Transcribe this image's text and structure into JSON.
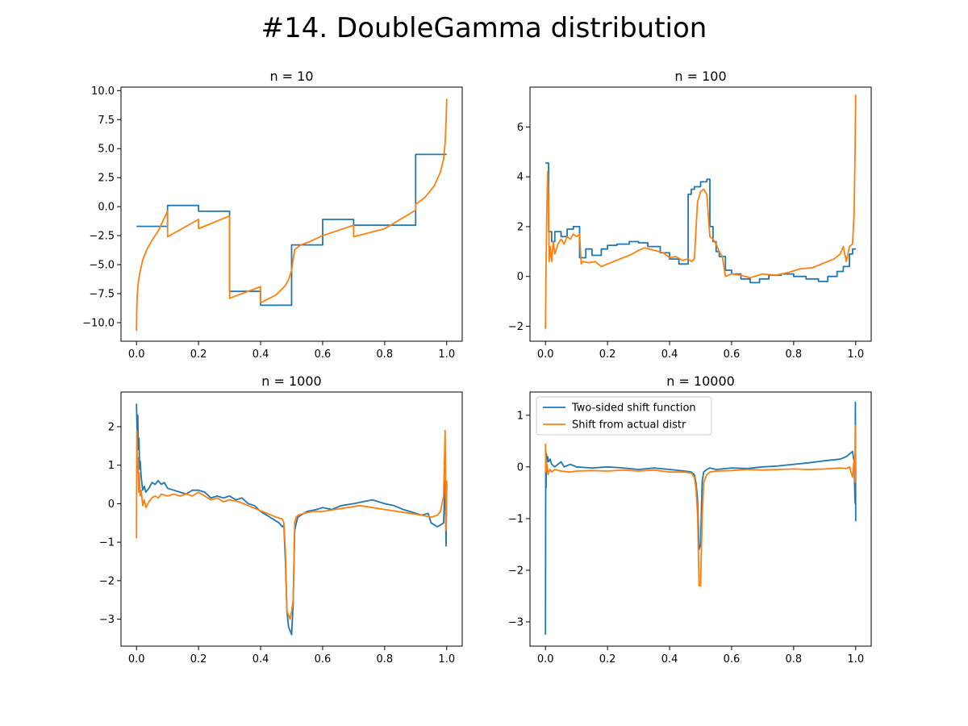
{
  "figure": {
    "title": "#14. DoubleGamma distribution"
  },
  "colors": {
    "series_0": "#1f77b4",
    "series_1": "#ff7f0e"
  },
  "legend": {
    "placement": "upper-left",
    "panel": 3,
    "entries": [
      "Two-sided shift function",
      "Shift from actual distr"
    ]
  },
  "chart_data": [
    {
      "type": "line",
      "title": "n = 10",
      "xlim": [
        -0.05,
        1.05
      ],
      "ylim": [
        -11.6,
        10.3
      ],
      "xticks": [
        0.0,
        0.2,
        0.4,
        0.6,
        0.8,
        1.0
      ],
      "xtick_labels": [
        "0.0",
        "0.2",
        "0.4",
        "0.6",
        "0.8",
        "1.0"
      ],
      "yticks": [
        -10.0,
        -7.5,
        -5.0,
        -2.5,
        0.0,
        2.5,
        5.0,
        7.5,
        10.0
      ],
      "ytick_labels": [
        "−10.0",
        "−7.5",
        "−5.0",
        "−2.5",
        "0.0",
        "2.5",
        "5.0",
        "7.5",
        "10.0"
      ],
      "series": [
        {
          "name": "Two-sided shift function",
          "x": [
            0.0,
            0.1,
            0.1,
            0.2,
            0.2,
            0.3,
            0.3,
            0.4,
            0.4,
            0.5,
            0.5,
            0.6,
            0.6,
            0.7,
            0.7,
            0.9,
            0.9,
            1.0
          ],
          "y": [
            -1.7,
            -1.7,
            0.1,
            0.1,
            -0.4,
            -0.4,
            -7.3,
            -7.3,
            -8.5,
            -8.5,
            -3.3,
            -3.3,
            -1.1,
            -1.1,
            -1.6,
            -1.6,
            4.5,
            4.5
          ]
        },
        {
          "name": "Shift from actual distr",
          "x": [
            0.0,
            0.001,
            0.003,
            0.006,
            0.01,
            0.02,
            0.035,
            0.05,
            0.07,
            0.1,
            0.1,
            0.2,
            0.2,
            0.3,
            0.3,
            0.4,
            0.4,
            0.45,
            0.48,
            0.49,
            0.5,
            0.51,
            0.53,
            0.56,
            0.6,
            0.7,
            0.7,
            0.8,
            0.9,
            0.9,
            0.93,
            0.96,
            0.98,
            0.99,
            0.995,
            0.998,
            1.0
          ],
          "y": [
            -10.7,
            -8.5,
            -7.4,
            -6.5,
            -5.8,
            -4.6,
            -3.6,
            -2.9,
            -2.1,
            -0.4,
            -2.6,
            -1.1,
            -1.9,
            -0.8,
            -7.9,
            -6.9,
            -8.3,
            -7.6,
            -6.8,
            -6.3,
            -5.5,
            -3.7,
            -3.3,
            -3.0,
            -2.5,
            -1.6,
            -2.6,
            -1.9,
            -0.3,
            0.2,
            0.8,
            1.8,
            3.0,
            4.1,
            5.5,
            7.3,
            9.3
          ]
        }
      ]
    },
    {
      "type": "line",
      "title": "n = 100",
      "xlim": [
        -0.05,
        1.05
      ],
      "ylim": [
        -2.6,
        7.6
      ],
      "xticks": [
        0.0,
        0.2,
        0.4,
        0.6,
        0.8,
        1.0
      ],
      "xtick_labels": [
        "0.0",
        "0.2",
        "0.4",
        "0.6",
        "0.8",
        "1.0"
      ],
      "yticks": [
        -2,
        0,
        2,
        4,
        6
      ],
      "ytick_labels": [
        "−2",
        "0",
        "2",
        "4",
        "6"
      ],
      "series": [
        {
          "name": "Two-sided shift function",
          "x": [
            0.0,
            0.01,
            0.01,
            0.02,
            0.02,
            0.03,
            0.03,
            0.05,
            0.05,
            0.07,
            0.07,
            0.09,
            0.09,
            0.11,
            0.11,
            0.13,
            0.13,
            0.15,
            0.15,
            0.18,
            0.18,
            0.2,
            0.2,
            0.23,
            0.23,
            0.27,
            0.27,
            0.3,
            0.3,
            0.33,
            0.33,
            0.37,
            0.37,
            0.4,
            0.4,
            0.43,
            0.43,
            0.46,
            0.46,
            0.47,
            0.47,
            0.48,
            0.48,
            0.5,
            0.5,
            0.52,
            0.52,
            0.53,
            0.53,
            0.54,
            0.54,
            0.55,
            0.55,
            0.56,
            0.56,
            0.58,
            0.58,
            0.6,
            0.6,
            0.63,
            0.63,
            0.66,
            0.66,
            0.69,
            0.69,
            0.72,
            0.72,
            0.76,
            0.76,
            0.8,
            0.8,
            0.84,
            0.84,
            0.88,
            0.88,
            0.91,
            0.91,
            0.94,
            0.94,
            0.96,
            0.96,
            0.98,
            0.98,
            0.99,
            0.99,
            1.0
          ],
          "y": [
            4.55,
            4.55,
            1.8,
            1.8,
            1.4,
            1.4,
            1.8,
            1.8,
            1.6,
            1.6,
            1.9,
            1.9,
            2.0,
            2.0,
            0.75,
            0.75,
            1.1,
            1.1,
            0.85,
            0.85,
            1.1,
            1.1,
            1.25,
            1.25,
            1.3,
            1.3,
            1.4,
            1.4,
            1.35,
            1.35,
            1.2,
            1.2,
            0.95,
            0.95,
            0.7,
            0.7,
            0.5,
            0.5,
            3.3,
            3.3,
            3.5,
            3.5,
            3.6,
            3.6,
            3.8,
            3.8,
            3.9,
            3.9,
            2.0,
            2.0,
            1.4,
            1.4,
            1.0,
            1.0,
            0.8,
            0.8,
            0.25,
            0.25,
            0.1,
            0.1,
            -0.1,
            -0.1,
            -0.25,
            -0.25,
            -0.1,
            -0.1,
            0.05,
            0.05,
            0.1,
            0.1,
            0.0,
            0.0,
            -0.1,
            -0.1,
            -0.2,
            -0.2,
            0.0,
            0.0,
            0.2,
            0.2,
            0.4,
            0.4,
            0.9,
            0.9,
            1.1,
            1.1
          ]
        },
        {
          "name": "Shift from actual distr",
          "x": [
            0.0,
            0.002,
            0.004,
            0.007,
            0.01,
            0.012,
            0.015,
            0.02,
            0.025,
            0.03,
            0.04,
            0.05,
            0.06,
            0.07,
            0.08,
            0.09,
            0.1,
            0.11,
            0.115,
            0.12,
            0.14,
            0.16,
            0.18,
            0.2,
            0.22,
            0.25,
            0.28,
            0.3,
            0.32,
            0.35,
            0.38,
            0.4,
            0.42,
            0.44,
            0.46,
            0.47,
            0.48,
            0.49,
            0.5,
            0.51,
            0.52,
            0.53,
            0.54,
            0.55,
            0.56,
            0.57,
            0.58,
            0.6,
            0.63,
            0.66,
            0.7,
            0.74,
            0.78,
            0.82,
            0.86,
            0.9,
            0.93,
            0.95,
            0.96,
            0.97,
            0.98,
            0.99,
            0.995,
            0.998,
            1.0
          ],
          "y": [
            -2.1,
            0.5,
            2.5,
            4.2,
            3.0,
            0.6,
            1.2,
            0.6,
            1.4,
            0.9,
            1.3,
            1.5,
            1.3,
            1.6,
            1.5,
            1.7,
            1.6,
            1.7,
            0.5,
            0.6,
            0.55,
            0.6,
            0.4,
            0.5,
            0.6,
            0.75,
            0.9,
            1.05,
            1.15,
            1.05,
            0.95,
            0.75,
            0.8,
            0.65,
            0.7,
            0.6,
            0.7,
            3.0,
            3.4,
            3.5,
            3.3,
            1.6,
            1.5,
            1.3,
            1.0,
            0.8,
            0.0,
            0.1,
            0.05,
            -0.05,
            0.1,
            0.05,
            0.15,
            0.3,
            0.35,
            0.55,
            0.7,
            0.9,
            1.2,
            0.6,
            1.2,
            1.3,
            2.5,
            5.0,
            7.3
          ]
        }
      ]
    },
    {
      "type": "line",
      "title": "n = 1000",
      "xlim": [
        -0.05,
        1.05
      ],
      "ylim": [
        -3.7,
        2.9
      ],
      "xticks": [
        0.0,
        0.2,
        0.4,
        0.6,
        0.8,
        1.0
      ],
      "xtick_labels": [
        "0.0",
        "0.2",
        "0.4",
        "0.6",
        "0.8",
        "1.0"
      ],
      "yticks": [
        -3,
        -2,
        -1,
        0,
        1,
        2
      ],
      "ytick_labels": [
        "−3",
        "−2",
        "−1",
        "0",
        "1",
        "2"
      ],
      "series": [
        {
          "name": "Two-sided shift function",
          "x": [
            0.0,
            0.002,
            0.004,
            0.006,
            0.008,
            0.01,
            0.012,
            0.015,
            0.02,
            0.025,
            0.03,
            0.04,
            0.05,
            0.06,
            0.07,
            0.08,
            0.09,
            0.1,
            0.12,
            0.14,
            0.16,
            0.18,
            0.2,
            0.22,
            0.24,
            0.26,
            0.28,
            0.3,
            0.32,
            0.34,
            0.36,
            0.38,
            0.4,
            0.42,
            0.44,
            0.46,
            0.47,
            0.475,
            0.48,
            0.485,
            0.49,
            0.495,
            0.5,
            0.505,
            0.51,
            0.515,
            0.52,
            0.53,
            0.55,
            0.58,
            0.6,
            0.63,
            0.66,
            0.7,
            0.73,
            0.76,
            0.8,
            0.83,
            0.86,
            0.9,
            0.92,
            0.94,
            0.95,
            0.96,
            0.97,
            0.98,
            0.99,
            0.995,
            0.998,
            1.0
          ],
          "y": [
            2.6,
            1.8,
            2.3,
            1.4,
            1.7,
            0.9,
            1.1,
            0.7,
            0.35,
            0.45,
            0.3,
            0.4,
            0.55,
            0.5,
            0.6,
            0.5,
            0.55,
            0.4,
            0.35,
            0.3,
            0.25,
            0.35,
            0.35,
            0.3,
            0.15,
            0.2,
            0.15,
            0.2,
            0.1,
            0.15,
            0.0,
            -0.05,
            -0.2,
            -0.3,
            -0.4,
            -0.5,
            -0.6,
            -0.55,
            -1.5,
            -2.8,
            -3.2,
            -3.3,
            -3.4,
            -2.6,
            -0.7,
            -0.5,
            -0.35,
            -0.3,
            -0.2,
            -0.15,
            -0.1,
            -0.15,
            -0.05,
            0.0,
            0.05,
            0.1,
            0.0,
            -0.05,
            -0.15,
            -0.25,
            -0.3,
            -0.25,
            -0.5,
            -0.55,
            -0.6,
            -0.55,
            -0.5,
            0.6,
            -1.1,
            0.5
          ]
        },
        {
          "name": "Shift from actual distr",
          "x": [
            0.0,
            0.001,
            0.003,
            0.005,
            0.007,
            0.009,
            0.012,
            0.015,
            0.02,
            0.025,
            0.03,
            0.04,
            0.05,
            0.06,
            0.07,
            0.08,
            0.1,
            0.12,
            0.14,
            0.16,
            0.18,
            0.2,
            0.22,
            0.24,
            0.26,
            0.28,
            0.3,
            0.33,
            0.36,
            0.39,
            0.42,
            0.45,
            0.47,
            0.475,
            0.48,
            0.485,
            0.49,
            0.495,
            0.5,
            0.505,
            0.51,
            0.515,
            0.52,
            0.54,
            0.57,
            0.6,
            0.64,
            0.68,
            0.72,
            0.76,
            0.8,
            0.84,
            0.88,
            0.92,
            0.95,
            0.97,
            0.98,
            0.99,
            0.995,
            0.998,
            1.0
          ],
          "y": [
            -0.9,
            1.9,
            0.8,
            1.2,
            0.3,
            0.8,
            0.2,
            0.35,
            -0.05,
            0.1,
            -0.1,
            0.05,
            0.15,
            0.2,
            0.15,
            0.25,
            0.2,
            0.25,
            0.2,
            0.25,
            0.2,
            0.3,
            0.2,
            0.1,
            0.15,
            0.05,
            0.1,
            0.05,
            -0.05,
            -0.15,
            -0.25,
            -0.35,
            -0.4,
            -0.5,
            -1.2,
            -2.8,
            -2.9,
            -3.0,
            -2.8,
            -2.5,
            -0.5,
            -0.35,
            -0.3,
            -0.25,
            -0.2,
            -0.2,
            -0.15,
            -0.1,
            -0.05,
            -0.1,
            -0.15,
            -0.2,
            -0.25,
            -0.3,
            -0.35,
            -0.3,
            -0.2,
            0.2,
            1.9,
            -0.7,
            0.6
          ]
        }
      ]
    },
    {
      "type": "line",
      "title": "n = 10000",
      "xlim": [
        -0.05,
        1.05
      ],
      "ylim": [
        -3.47,
        1.45
      ],
      "xticks": [
        0.0,
        0.2,
        0.4,
        0.6,
        0.8,
        1.0
      ],
      "xtick_labels": [
        "0.0",
        "0.2",
        "0.4",
        "0.6",
        "0.8",
        "1.0"
      ],
      "yticks": [
        -3,
        -2,
        -1,
        0,
        1
      ],
      "ytick_labels": [
        "−3",
        "−2",
        "−1",
        "0",
        "1"
      ],
      "series": [
        {
          "name": "Two-sided shift function",
          "x": [
            0.0,
            0.0005,
            0.001,
            0.002,
            0.003,
            0.005,
            0.007,
            0.01,
            0.015,
            0.02,
            0.03,
            0.04,
            0.05,
            0.06,
            0.08,
            0.1,
            0.15,
            0.2,
            0.25,
            0.3,
            0.35,
            0.4,
            0.45,
            0.47,
            0.48,
            0.485,
            0.49,
            0.495,
            0.5,
            0.505,
            0.51,
            0.52,
            0.53,
            0.55,
            0.6,
            0.65,
            0.7,
            0.75,
            0.8,
            0.85,
            0.9,
            0.95,
            0.97,
            0.98,
            0.99,
            0.995,
            0.998,
            0.999,
            1.0
          ],
          "y": [
            -3.25,
            -1.0,
            0.3,
            -0.4,
            0.25,
            0.1,
            0.2,
            0.1,
            0.15,
            0.05,
            0.0,
            0.05,
            0.1,
            0.0,
            0.05,
            0.0,
            -0.02,
            0.0,
            -0.02,
            -0.05,
            -0.02,
            -0.05,
            -0.08,
            -0.1,
            -0.15,
            -0.3,
            -0.6,
            -1.6,
            -1.5,
            -0.3,
            -0.1,
            -0.05,
            -0.02,
            -0.05,
            -0.02,
            -0.03,
            0.0,
            0.02,
            0.05,
            0.08,
            0.12,
            0.15,
            0.2,
            0.25,
            0.3,
            0.1,
            -0.7,
            1.25,
            -1.05
          ]
        },
        {
          "name": "Shift from actual distr",
          "x": [
            0.0,
            0.001,
            0.002,
            0.003,
            0.005,
            0.008,
            0.01,
            0.015,
            0.02,
            0.03,
            0.05,
            0.08,
            0.1,
            0.15,
            0.2,
            0.25,
            0.3,
            0.35,
            0.4,
            0.45,
            0.47,
            0.48,
            0.485,
            0.49,
            0.495,
            0.5,
            0.505,
            0.51,
            0.52,
            0.53,
            0.55,
            0.6,
            0.65,
            0.7,
            0.75,
            0.8,
            0.85,
            0.9,
            0.95,
            0.97,
            0.98,
            0.99,
            0.995,
            0.998,
            0.999,
            1.0
          ],
          "y": [
            0.45,
            -0.1,
            0.15,
            -0.05,
            0.05,
            -0.15,
            -0.1,
            -0.05,
            -0.1,
            -0.05,
            -0.08,
            -0.1,
            -0.08,
            -0.07,
            -0.08,
            -0.06,
            -0.08,
            -0.06,
            -0.1,
            -0.1,
            -0.12,
            -0.2,
            -0.4,
            -0.9,
            -2.3,
            -2.3,
            -1.0,
            -0.3,
            -0.15,
            -0.1,
            -0.08,
            -0.07,
            -0.05,
            -0.06,
            -0.05,
            -0.04,
            -0.05,
            -0.04,
            -0.02,
            -0.03,
            0.0,
            -0.2,
            0.15,
            -0.3,
            0.8,
            0.0
          ]
        }
      ]
    }
  ]
}
